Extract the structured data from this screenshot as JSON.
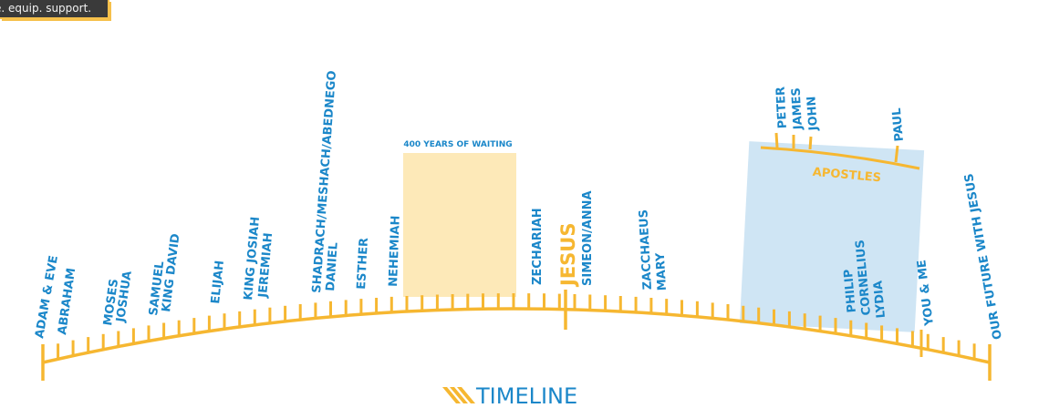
{
  "badge": {
    "text": "e. equip. support."
  },
  "brand": {
    "title": "TIMELINE",
    "accent": "#f6b731",
    "blue": "#1b87c9"
  },
  "panels": {
    "waiting": "400 YEARS OF WAITING",
    "apostles": "APOSTLES"
  },
  "labels": {
    "adam_eve": "ADAM & EVE",
    "abraham": "ABRAHAM",
    "moses": "MOSES",
    "joshua": "JOSHUA",
    "samuel": "SAMUEL",
    "king_david": "KING DAVID",
    "elijah": "ELIJAH",
    "king_josiah": "KING JOSIAH",
    "jeremiah": "JEREMIAH",
    "shadrach": "SHADRACH/MESHACH/ABEDNEGO",
    "daniel": "DANIEL",
    "esther": "ESTHER",
    "nehemiah": "NEHEMIAH",
    "zechariah": "ZECHARIAH",
    "jesus": "JESUS",
    "simeon_anna": "SIMEON/ANNA",
    "zacchaeus": "ZACCHAEUS",
    "mary": "MARY",
    "peter": "PETER",
    "james": "JAMES",
    "john": "JOHN",
    "paul": "PAUL",
    "philip": "PHILIP",
    "cornelius": "CORNELIUS",
    "lydia": "LYDIA",
    "you_me": "YOU & ME",
    "future": "OUR FUTURE WITH JESUS"
  }
}
